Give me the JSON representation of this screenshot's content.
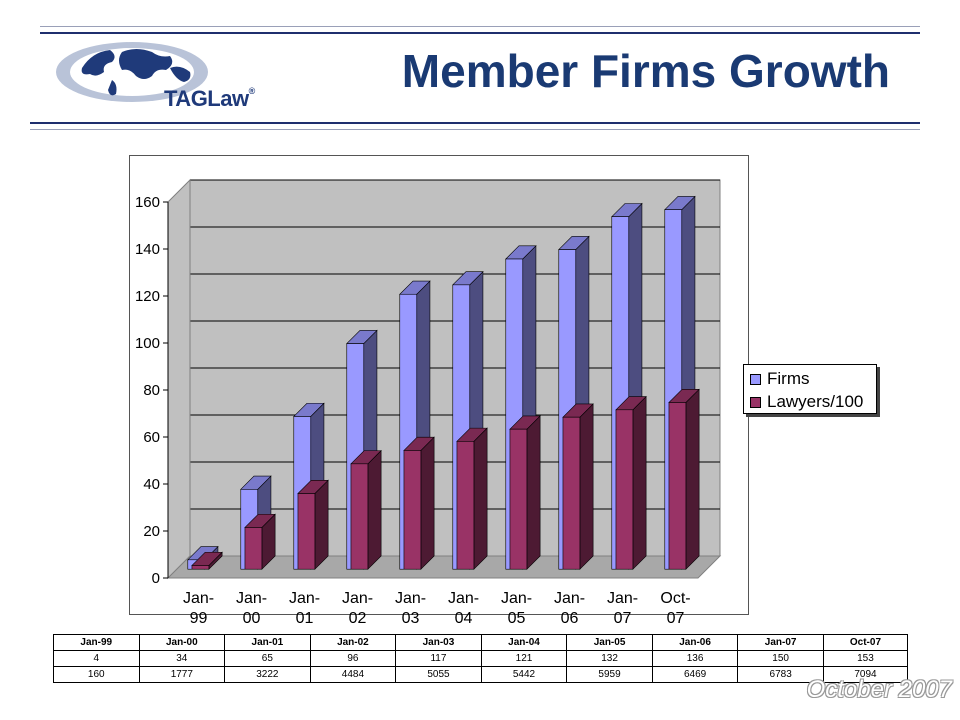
{
  "header": {
    "title": "Member Firms Growth",
    "logo_text": "TAGLaw",
    "logo_mark": "®"
  },
  "colors": {
    "firms": "#9999ff",
    "lawyers": "#993366",
    "plot_bg": "#c0c0c0",
    "title": "#1a3a73"
  },
  "chart_data": {
    "type": "bar",
    "categories": [
      "Jan-99",
      "Jan-00",
      "Jan-01",
      "Jan-02",
      "Jan-03",
      "Jan-04",
      "Jan-05",
      "Jan-06",
      "Jan-07",
      "Oct-07"
    ],
    "tick_labels": [
      [
        "Jan-",
        "99"
      ],
      [
        "Jan-",
        "00"
      ],
      [
        "Jan-",
        "01"
      ],
      [
        "Jan-",
        "02"
      ],
      [
        "Jan-",
        "03"
      ],
      [
        "Jan-",
        "04"
      ],
      [
        "Jan-",
        "05"
      ],
      [
        "Jan-",
        "06"
      ],
      [
        "Jan-",
        "07"
      ],
      [
        "Oct-",
        "07"
      ]
    ],
    "series": [
      {
        "name": "Firms",
        "values": [
          4,
          34,
          65,
          96,
          117,
          121,
          132,
          136,
          150,
          153
        ]
      },
      {
        "name": "Lawyers/100",
        "values": [
          1.6,
          17.77,
          32.22,
          44.84,
          50.55,
          54.42,
          59.59,
          64.69,
          67.83,
          70.94
        ]
      }
    ],
    "ylim": [
      0,
      160
    ],
    "yticks": [
      0,
      20,
      40,
      60,
      80,
      100,
      120,
      140,
      160
    ],
    "grid": true,
    "legend": "right",
    "style": "3d-column"
  },
  "table": {
    "headers": [
      "Jan-99",
      "Jan-00",
      "Jan-01",
      "Jan-02",
      "Jan-03",
      "Jan-04",
      "Jan-05",
      "Jan-06",
      "Jan-07",
      "Oct-07"
    ],
    "rows": [
      [
        "4",
        "34",
        "65",
        "96",
        "117",
        "121",
        "132",
        "136",
        "150",
        "153"
      ],
      [
        "160",
        "1777",
        "3222",
        "4484",
        "5055",
        "5442",
        "5959",
        "6469",
        "6783",
        "7094"
      ]
    ]
  },
  "footer": {
    "date": "October 2007"
  }
}
